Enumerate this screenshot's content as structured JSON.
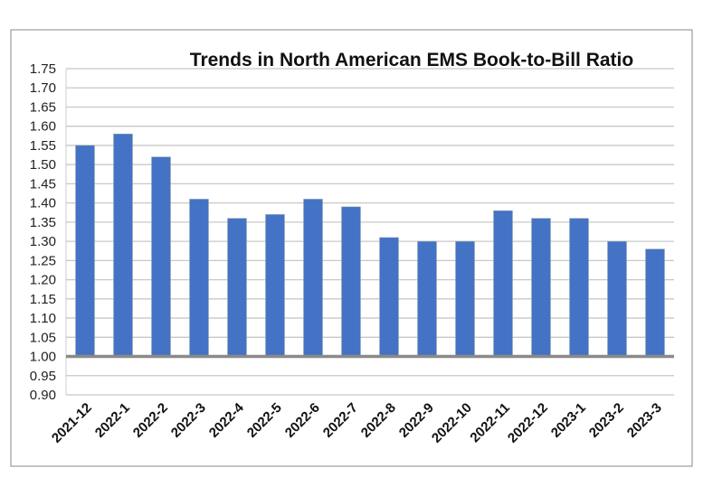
{
  "chart_data": {
    "type": "bar",
    "title": "Trends in North American EMS Book-to-Bill Ratio",
    "xlabel": "",
    "ylabel": "",
    "categories": [
      "2021-12",
      "2022-1",
      "2022-2",
      "2022-3",
      "2022-4",
      "2022-5",
      "2022-6",
      "2022-7",
      "2022-8",
      "2022-9",
      "2022-10",
      "2022-11",
      "2022-12",
      "2023-1",
      "2023-2",
      "2023-3"
    ],
    "values": [
      1.55,
      1.58,
      1.52,
      1.41,
      1.36,
      1.37,
      1.41,
      1.39,
      1.31,
      1.3,
      1.3,
      1.38,
      1.36,
      1.36,
      1.3,
      1.28
    ],
    "ylim": [
      0.9,
      1.75
    ],
    "yticks": [
      "0.90",
      "0.95",
      "1.00",
      "1.05",
      "1.10",
      "1.15",
      "1.20",
      "1.25",
      "1.30",
      "1.35",
      "1.40",
      "1.45",
      "1.50",
      "1.55",
      "1.60",
      "1.65",
      "1.70",
      "1.75"
    ],
    "baseline": 1.0,
    "grid": true,
    "legend": "none",
    "colors": {
      "bar": "#4472c4",
      "grid": "#c8c8c8",
      "baseline": "#8a8a8a"
    }
  }
}
